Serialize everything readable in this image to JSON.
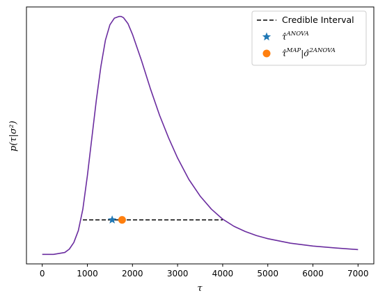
{
  "chart_data": {
    "type": "line",
    "xlabel": "τ",
    "ylabel": "p(τ|σ²)",
    "xlim": [
      -350,
      7350
    ],
    "ylim": [
      -0.04,
      1.04
    ],
    "xticks": [
      0,
      1000,
      2000,
      3000,
      4000,
      5000,
      6000,
      7000
    ],
    "xtick_labels": [
      "0",
      "1000",
      "2000",
      "3000",
      "4000",
      "5000",
      "6000",
      "7000"
    ],
    "yticks": [],
    "grid": false,
    "legend_position": "top-right",
    "colors": {
      "density": "#6a2c9f",
      "interval": "#000000",
      "anova_marker": "#1f77b4",
      "map_marker": "#ff7f0e",
      "axes": "#000000"
    },
    "series": [
      {
        "kind": "line",
        "x": [
          0,
          250,
          500,
          600,
          700,
          800,
          900,
          1000,
          1100,
          1200,
          1300,
          1400,
          1500,
          1600,
          1700,
          1750,
          1800,
          1900,
          2000,
          2200,
          2400,
          2600,
          2800,
          3000,
          3250,
          3500,
          3750,
          4000,
          4250,
          4500,
          4750,
          5000,
          5500,
          6000,
          6500,
          7000
        ],
        "y": [
          0.0,
          0.0,
          0.008,
          0.022,
          0.05,
          0.1,
          0.19,
          0.33,
          0.49,
          0.65,
          0.79,
          0.9,
          0.965,
          0.993,
          1.0,
          1.0,
          0.995,
          0.97,
          0.925,
          0.815,
          0.695,
          0.585,
          0.49,
          0.405,
          0.315,
          0.245,
          0.19,
          0.148,
          0.118,
          0.096,
          0.079,
          0.066,
          0.047,
          0.035,
          0.027,
          0.02
        ]
      },
      {
        "name": "Credible Interval",
        "kind": "dashed-line",
        "x": [
          900,
          4000
        ],
        "y": [
          0.145,
          0.145
        ]
      },
      {
        "kind": "star-marker",
        "x": [
          1550
        ],
        "y": [
          0.145
        ]
      },
      {
        "kind": "circle-marker",
        "x": [
          1770
        ],
        "y": [
          0.145
        ]
      }
    ],
    "legend": {
      "interval_label": "Credible Interval",
      "anova_base": "τ̂",
      "anova_sup": "ANOVA",
      "map_base": "τ̂",
      "map_sup1": "MAP",
      "map_mid": "|σ̂",
      "map_sup2": "2ANOVA"
    }
  }
}
